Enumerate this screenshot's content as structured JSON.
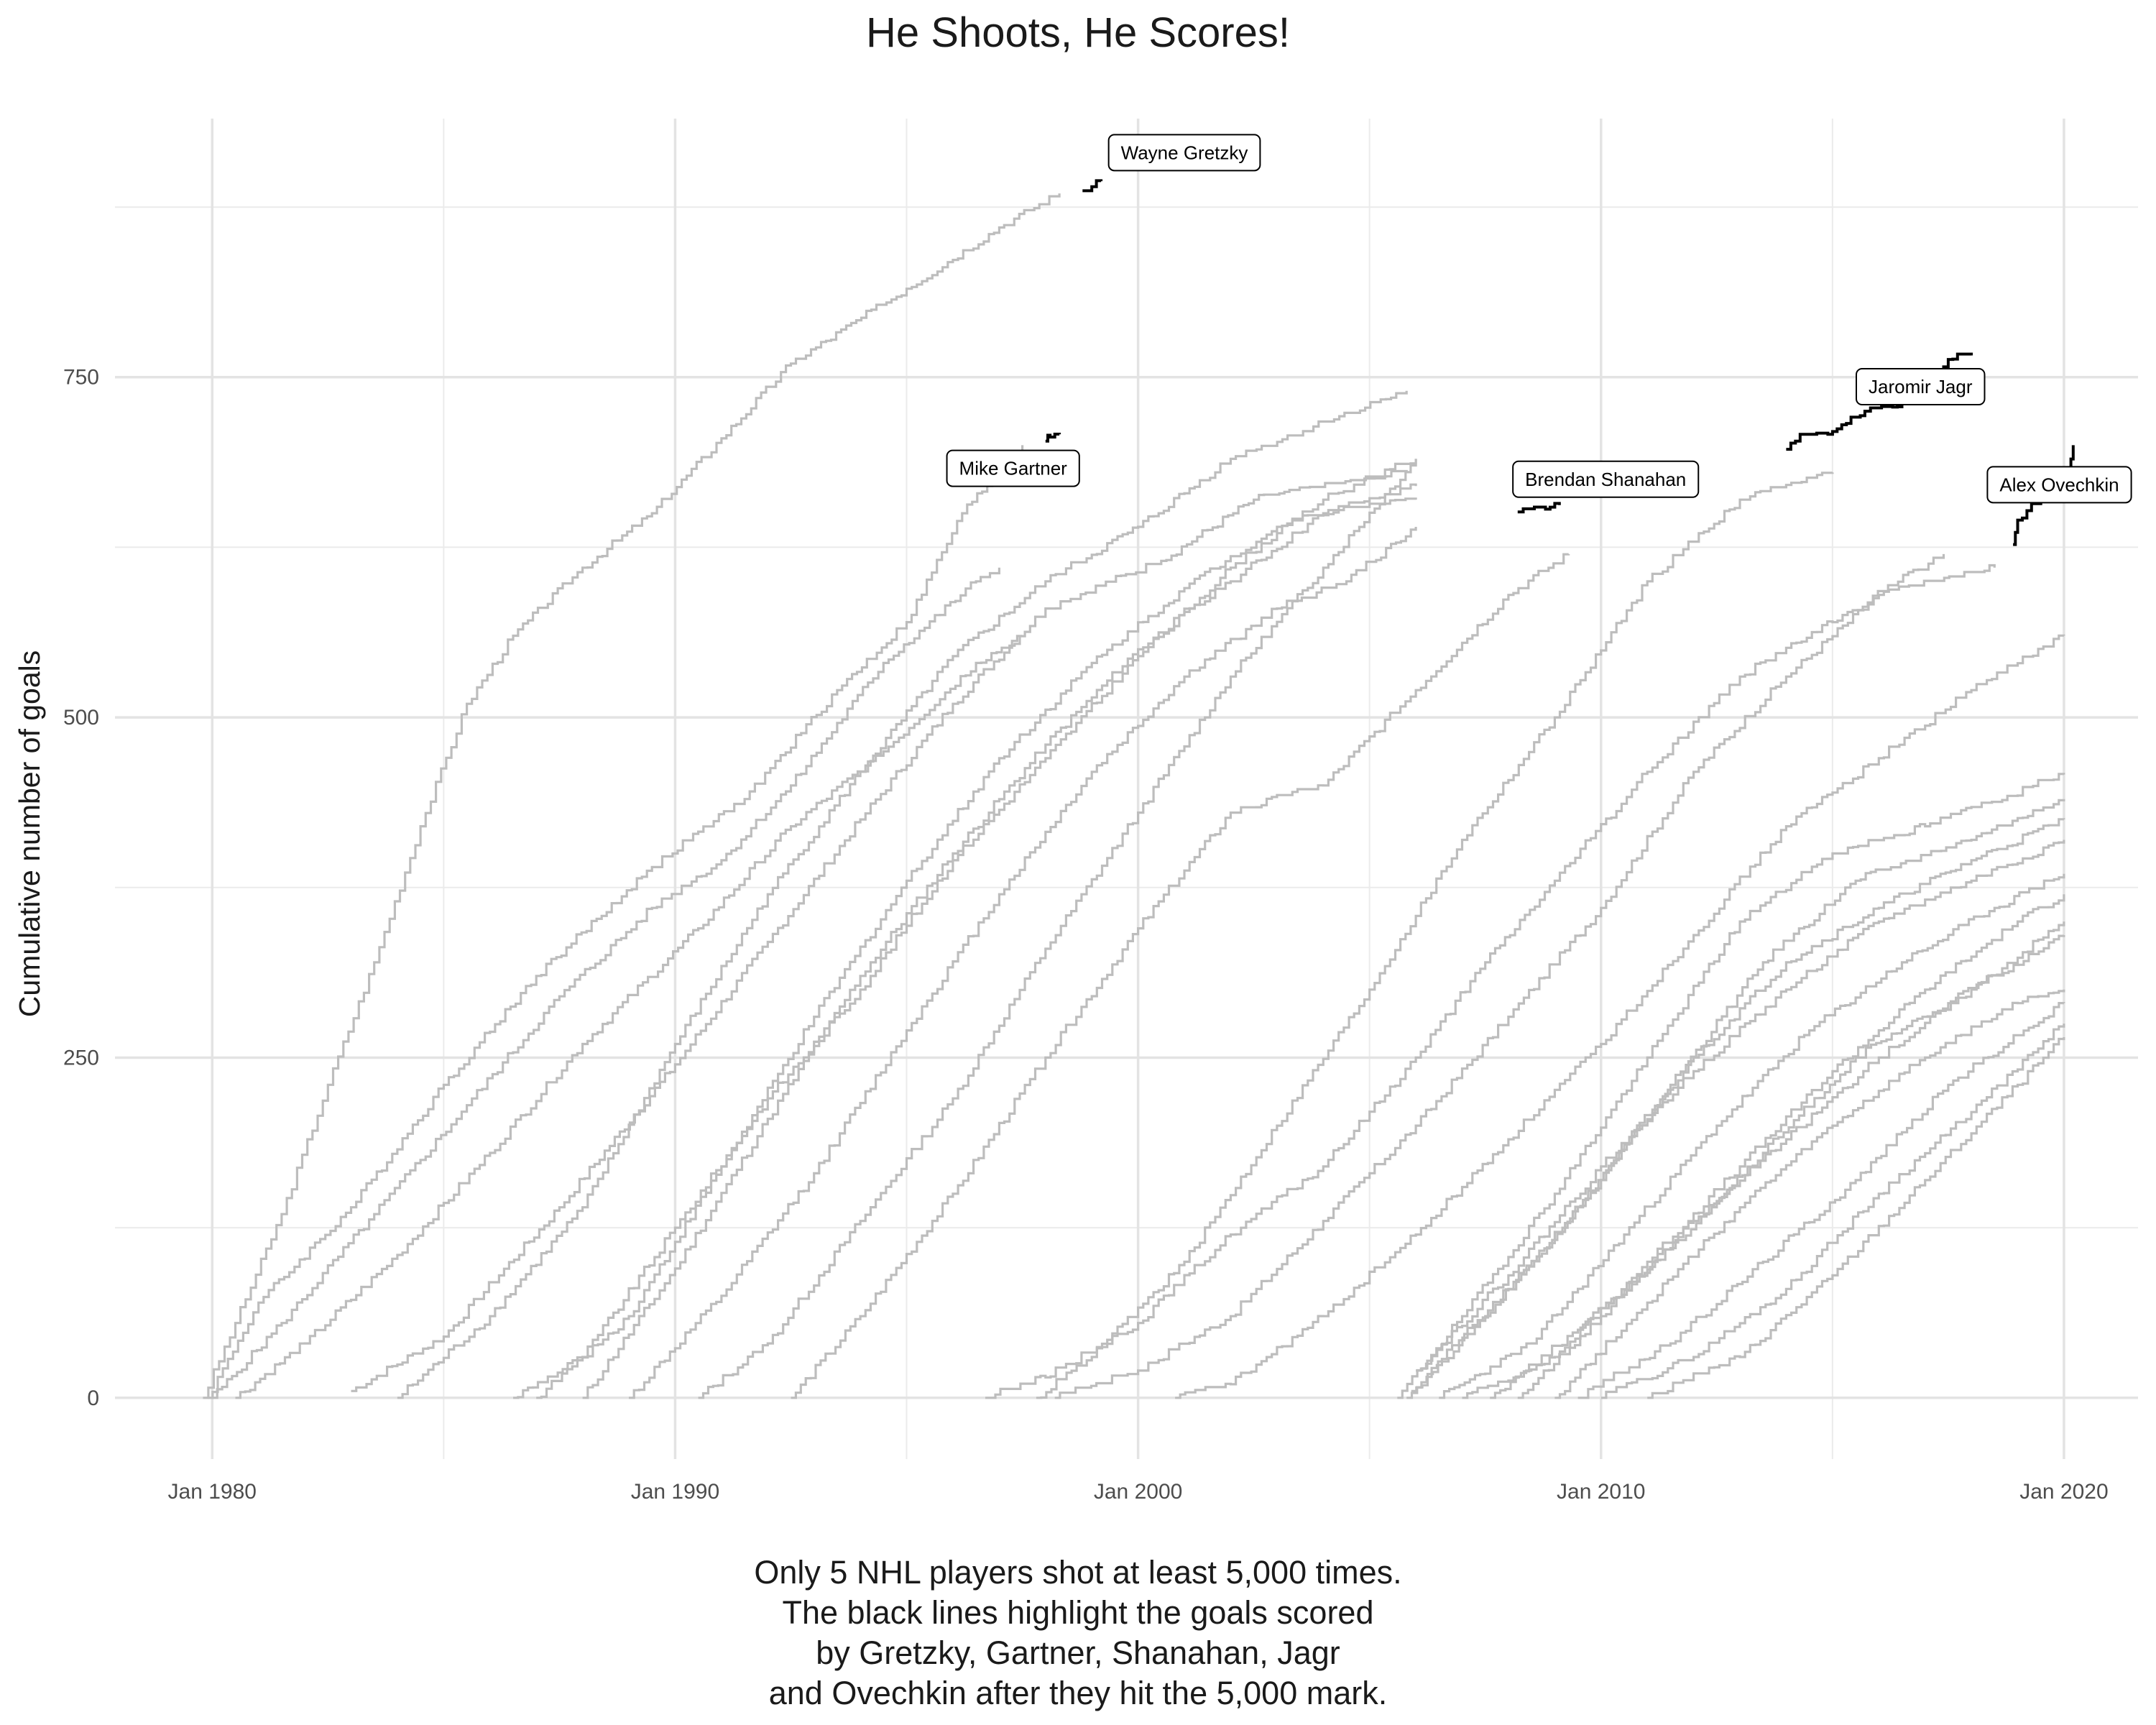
{
  "chart_data": {
    "type": "line",
    "title": "He Shoots, He Scores!",
    "xlabel": "",
    "ylabel": "Cumulative number of goals",
    "x_ticks": [
      "Jan 1980",
      "Jan 1990",
      "Jan 2000",
      "Jan 2010",
      "Jan 2020"
    ],
    "y_ticks": [
      0,
      250,
      500,
      750
    ],
    "xlim": [
      1977.9,
      2021.6
    ],
    "ylim": [
      -45,
      940
    ],
    "grid": true,
    "legend": "none",
    "caption": [
      "Only 5 NHL players shot at least 5,000 times.",
      "The black lines highlight the goals scored",
      "by Gretzky, Gartner, Shanahan, Jagr",
      "and Ovechkin after they hit the 5,000 mark."
    ],
    "highlight_color": "#000000",
    "background_color": "#bdbdbd",
    "highlighted_players": [
      {
        "name": "Wayne Gretzky",
        "label_at": [
          2001.0,
          915
        ],
        "points": [
          [
            1998.8,
            887
          ],
          [
            1999.0,
            890
          ],
          [
            1999.2,
            894
          ]
        ]
      },
      {
        "name": "Mike Gartner",
        "label_at": [
          1997.3,
          683
        ],
        "points": [
          [
            1998.0,
            703
          ],
          [
            1998.1,
            706
          ],
          [
            1998.3,
            708
          ]
        ]
      },
      {
        "name": "Brendan Shanahan",
        "label_at": [
          2010.1,
          675
        ],
        "points": [
          [
            2008.2,
            651
          ],
          [
            2008.8,
            653
          ],
          [
            2009.1,
            656
          ]
        ]
      },
      {
        "name": "Jaromir Jagr",
        "label_at": [
          2016.9,
          743
        ],
        "points": [
          [
            2014.0,
            697
          ],
          [
            2014.3,
            708
          ],
          [
            2014.9,
            708
          ],
          [
            2015.3,
            716
          ],
          [
            2015.7,
            725
          ],
          [
            2016.3,
            728
          ],
          [
            2016.8,
            737
          ],
          [
            2017.2,
            755
          ],
          [
            2017.5,
            763
          ],
          [
            2018.0,
            766
          ]
        ]
      },
      {
        "name": "Alex Ovechkin",
        "label_at": [
          2019.9,
          671
        ],
        "points": [
          [
            2018.9,
            627
          ],
          [
            2019.0,
            645
          ],
          [
            2019.3,
            657
          ],
          [
            2019.8,
            660
          ],
          [
            2019.9,
            672
          ],
          [
            2020.1,
            680
          ],
          [
            2020.2,
            700
          ]
        ]
      }
    ],
    "background_series": [
      [
        [
          1979.8,
          0
        ],
        [
          1980.5,
          55
        ],
        [
          1981.5,
          135
        ],
        [
          1982.5,
          230
        ],
        [
          1983.5,
          320
        ],
        [
          1984.5,
          420
        ],
        [
          1985.5,
          510
        ],
        [
          1986.5,
          560
        ],
        [
          1988.0,
          610
        ],
        [
          1989.5,
          650
        ],
        [
          1991.0,
          705
        ],
        [
          1992.5,
          760
        ],
        [
          1995.0,
          815
        ],
        [
          1997.0,
          860
        ],
        [
          1998.3,
          885
        ]
      ],
      [
        [
          1979.9,
          0
        ],
        [
          1981.0,
          70
        ],
        [
          1983.0,
          140
        ],
        [
          1985.0,
          230
        ],
        [
          1987.0,
          310
        ],
        [
          1989.5,
          390
        ],
        [
          1991.5,
          440
        ],
        [
          1993.5,
          520
        ],
        [
          1995.0,
          570
        ],
        [
          1996.2,
          650
        ],
        [
          1997.5,
          700
        ]
      ],
      [
        [
          1980.0,
          0
        ],
        [
          1981.5,
          55
        ],
        [
          1983.5,
          135
        ],
        [
          1985.5,
          215
        ],
        [
          1987.5,
          295
        ],
        [
          1989.5,
          360
        ],
        [
          1991.0,
          395
        ],
        [
          1992.5,
          450
        ],
        [
          1994.5,
          540
        ],
        [
          1996.5,
          600
        ],
        [
          1997.0,
          610
        ]
      ],
      [
        [
          1980.5,
          0
        ],
        [
          1982.0,
          40
        ],
        [
          1984.0,
          105
        ],
        [
          1986.0,
          180
        ],
        [
          1988.0,
          260
        ],
        [
          1990.5,
          345
        ],
        [
          1992.5,
          420
        ],
        [
          1994.5,
          475
        ],
        [
          1996.5,
          540
        ],
        [
          1997.5,
          560
        ]
      ],
      [
        [
          1983.0,
          5
        ],
        [
          1985.0,
          45
        ],
        [
          1987.5,
          140
        ],
        [
          1990.0,
          245
        ],
        [
          1992.0,
          335
        ],
        [
          1994.0,
          425
        ],
        [
          1996.0,
          510
        ],
        [
          1998.0,
          580
        ],
        [
          2000.5,
          615
        ],
        [
          2002.5,
          660
        ],
        [
          2005.8,
          680
        ]
      ],
      [
        [
          1984.0,
          0
        ],
        [
          1986.0,
          60
        ],
        [
          1988.0,
          140
        ],
        [
          1990.0,
          260
        ],
        [
          1992.0,
          370
        ],
        [
          1994.0,
          460
        ],
        [
          1996.0,
          545
        ],
        [
          1998.0,
          600
        ],
        [
          2000.0,
          640
        ],
        [
          2002.0,
          690
        ],
        [
          2005.8,
          740
        ]
      ],
      [
        [
          1986.5,
          0
        ],
        [
          1988.0,
          30
        ],
        [
          1990.0,
          125
        ],
        [
          1992.0,
          220
        ],
        [
          1994.0,
          300
        ],
        [
          1996.0,
          395
        ],
        [
          1998.0,
          470
        ],
        [
          2000.0,
          545
        ],
        [
          2002.0,
          610
        ],
        [
          2004.0,
          660
        ],
        [
          2006.0,
          690
        ]
      ],
      [
        [
          1987.0,
          0
        ],
        [
          1989.0,
          60
        ],
        [
          1991.0,
          170
        ],
        [
          1993.0,
          280
        ],
        [
          1995.0,
          380
        ],
        [
          1997.0,
          470
        ],
        [
          1999.0,
          540
        ],
        [
          2001.0,
          595
        ],
        [
          2003.0,
          640
        ],
        [
          2006.0,
          670
        ]
      ],
      [
        [
          1988.0,
          0
        ],
        [
          1990.0,
          95
        ],
        [
          1992.0,
          205
        ],
        [
          1994.0,
          310
        ],
        [
          1996.0,
          400
        ],
        [
          1998.0,
          480
        ],
        [
          2000.0,
          550
        ],
        [
          2002.0,
          600
        ],
        [
          2004.0,
          650
        ],
        [
          2006.0,
          660
        ]
      ],
      [
        [
          1989.0,
          0
        ],
        [
          1991.0,
          75
        ],
        [
          1993.0,
          165
        ],
        [
          1995.0,
          270
        ],
        [
          1997.0,
          370
        ],
        [
          1999.0,
          460
        ],
        [
          2001.0,
          530
        ],
        [
          2003.0,
          580
        ],
        [
          2004.5,
          600
        ],
        [
          2006.0,
          640
        ]
      ],
      [
        [
          1990.5,
          0
        ],
        [
          1992.0,
          40
        ],
        [
          1994.0,
          130
        ],
        [
          1996.0,
          220
        ],
        [
          1998.0,
          330
        ],
        [
          2000.0,
          430
        ],
        [
          2002.0,
          530
        ],
        [
          2004.0,
          610
        ],
        [
          2006.0,
          690
        ]
      ],
      [
        [
          1992.5,
          0
        ],
        [
          1994.0,
          60
        ],
        [
          1996.0,
          150
        ],
        [
          1998.0,
          250
        ],
        [
          2000.0,
          345
        ],
        [
          2002.0,
          430
        ],
        [
          2004.0,
          450
        ],
        [
          2006.0,
          520
        ],
        [
          2008.0,
          590
        ],
        [
          2009.3,
          620
        ]
      ],
      [
        [
          1996.7,
          0
        ],
        [
          1998.0,
          15
        ],
        [
          2000.0,
          55
        ],
        [
          2002.0,
          120
        ],
        [
          2004.0,
          170
        ],
        [
          2006.0,
          250
        ],
        [
          2007.5,
          320
        ],
        [
          2009.0,
          380
        ],
        [
          2011.0,
          460
        ],
        [
          2013.0,
          530
        ],
        [
          2015.0,
          570
        ],
        [
          2017.4,
          620
        ]
      ],
      [
        [
          1997.8,
          0
        ],
        [
          1999.0,
          30
        ],
        [
          2001.0,
          100
        ],
        [
          2003.0,
          200
        ],
        [
          2005.0,
          300
        ],
        [
          2007.0,
          410
        ],
        [
          2009.0,
          500
        ],
        [
          2011.0,
          600
        ],
        [
          2013.0,
          660
        ],
        [
          2015.0,
          680
        ]
      ],
      [
        [
          1998.2,
          0
        ],
        [
          2000.0,
          20
        ],
        [
          2002.0,
          60
        ],
        [
          2004.0,
          130
        ],
        [
          2006.0,
          200
        ],
        [
          2008.0,
          280
        ],
        [
          2010.0,
          360
        ],
        [
          2012.0,
          460
        ],
        [
          2014.0,
          530
        ],
        [
          2016.0,
          590
        ],
        [
          2018.5,
          610
        ]
      ],
      [
        [
          2000.8,
          0
        ],
        [
          2002.0,
          10
        ],
        [
          2004.0,
          60
        ],
        [
          2006.0,
          120
        ],
        [
          2008.0,
          190
        ],
        [
          2010.0,
          260
        ],
        [
          2012.0,
          340
        ],
        [
          2014.0,
          420
        ],
        [
          2016.0,
          470
        ],
        [
          2018.0,
          520
        ],
        [
          2020.0,
          560
        ]
      ],
      [
        [
          2005.6,
          0
        ],
        [
          2007.0,
          60
        ],
        [
          2009.0,
          150
        ],
        [
          2011.0,
          250
        ],
        [
          2013.0,
          350
        ],
        [
          2015.0,
          400
        ],
        [
          2017.0,
          420
        ],
        [
          2020.0,
          458
        ]
      ],
      [
        [
          2005.8,
          0
        ],
        [
          2007.5,
          60
        ],
        [
          2009.5,
          140
        ],
        [
          2011.5,
          230
        ],
        [
          2013.5,
          320
        ],
        [
          2015.5,
          380
        ],
        [
          2018.0,
          410
        ],
        [
          2020.0,
          440
        ]
      ],
      [
        [
          2005.9,
          5
        ],
        [
          2008.0,
          80
        ],
        [
          2010.0,
          160
        ],
        [
          2012.0,
          250
        ],
        [
          2014.0,
          320
        ],
        [
          2016.0,
          360
        ],
        [
          2018.0,
          395
        ],
        [
          2020.0,
          425
        ]
      ],
      [
        [
          2006.0,
          20
        ],
        [
          2008.0,
          90
        ],
        [
          2010.0,
          170
        ],
        [
          2012.0,
          240
        ],
        [
          2014.0,
          300
        ],
        [
          2016.0,
          350
        ],
        [
          2018.0,
          380
        ],
        [
          2020.0,
          410
        ]
      ],
      [
        [
          2006.5,
          0
        ],
        [
          2008.5,
          40
        ],
        [
          2010.5,
          120
        ],
        [
          2012.5,
          200
        ],
        [
          2014.5,
          270
        ],
        [
          2016.5,
          320
        ],
        [
          2018.5,
          360
        ],
        [
          2020.0,
          385
        ]
      ],
      [
        [
          2007.0,
          0
        ],
        [
          2009.0,
          30
        ],
        [
          2011.0,
          100
        ],
        [
          2013.0,
          170
        ],
        [
          2015.0,
          240
        ],
        [
          2017.0,
          300
        ],
        [
          2019.0,
          350
        ],
        [
          2020.0,
          370
        ]
      ],
      [
        [
          2007.6,
          0
        ],
        [
          2009.5,
          50
        ],
        [
          2011.5,
          110
        ],
        [
          2013.5,
          180
        ],
        [
          2015.5,
          250
        ],
        [
          2017.5,
          290
        ],
        [
          2020.0,
          340
        ]
      ],
      [
        [
          2008.2,
          0
        ],
        [
          2010.0,
          60
        ],
        [
          2012.0,
          130
        ],
        [
          2014.0,
          190
        ],
        [
          2016.0,
          250
        ],
        [
          2018.0,
          300
        ],
        [
          2020.0,
          350
        ]
      ],
      [
        [
          2009.0,
          0
        ],
        [
          2011.0,
          70
        ],
        [
          2013.0,
          140
        ],
        [
          2015.0,
          200
        ],
        [
          2017.0,
          250
        ],
        [
          2019.0,
          290
        ],
        [
          2020.0,
          300
        ]
      ],
      [
        [
          2009.5,
          0
        ],
        [
          2011.5,
          40
        ],
        [
          2013.5,
          100
        ],
        [
          2015.5,
          160
        ],
        [
          2017.5,
          230
        ],
        [
          2020.0,
          290
        ]
      ],
      [
        [
          2010.0,
          0
        ],
        [
          2012.0,
          30
        ],
        [
          2014.0,
          80
        ],
        [
          2016.0,
          150
        ],
        [
          2018.0,
          210
        ],
        [
          2020.0,
          275
        ]
      ],
      [
        [
          2011.0,
          0
        ],
        [
          2013.0,
          30
        ],
        [
          2015.0,
          90
        ],
        [
          2017.0,
          160
        ],
        [
          2019.0,
          230
        ],
        [
          2020.0,
          265
        ]
      ]
    ]
  }
}
